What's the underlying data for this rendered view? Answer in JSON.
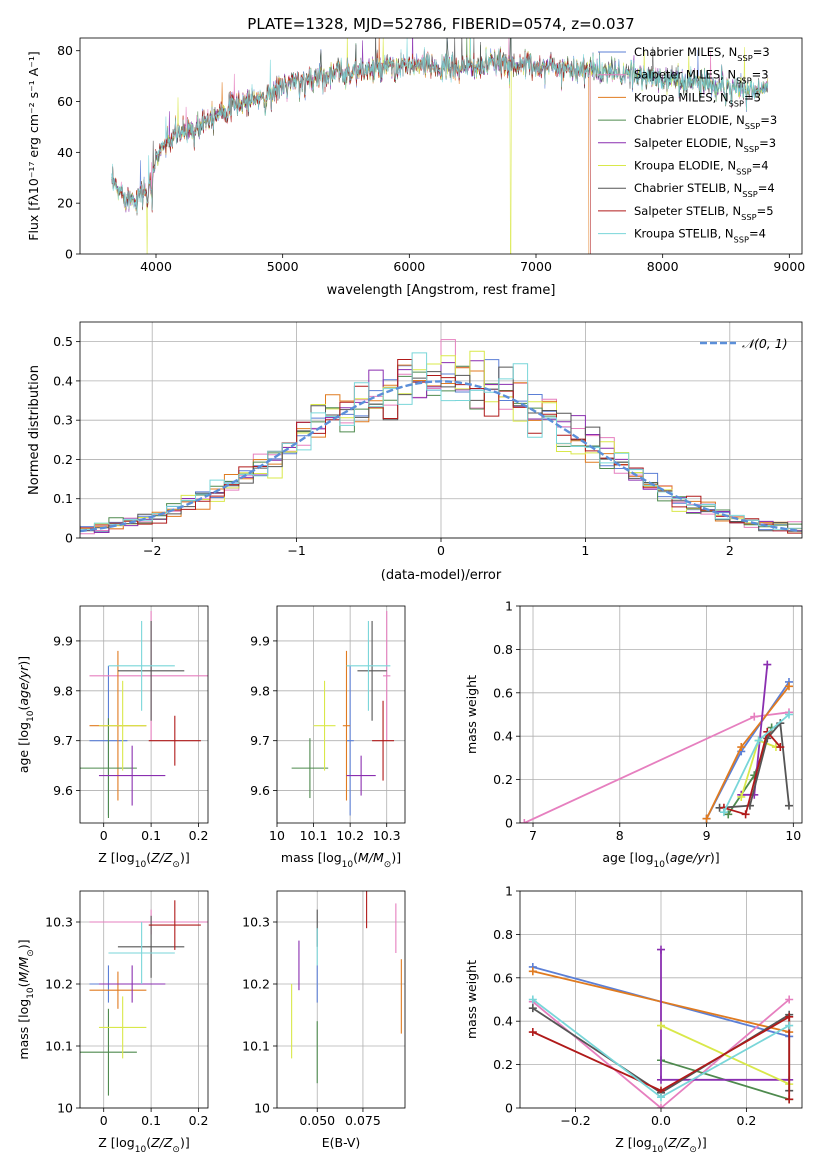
{
  "colors": {
    "chabrier_miles": "#5b7fd6",
    "salpeter_miles": "#e67fbf",
    "kroupa_miles": "#e07b20",
    "chabrier_elodie": "#4e8a4e",
    "salpeter_elodie": "#8a2fb0",
    "kroupa_elodie": "#d9e84a",
    "chabrier_stelib": "#555555",
    "salpeter_stelib": "#b01a1a",
    "kroupa_stelib": "#79d6d9",
    "normal_curve": "#5b8fd9"
  },
  "chart_data": [
    {
      "id": "spectrum",
      "type": "line",
      "title": "PLATE=1328, MJD=52786, FIBERID=0574, z=0.037",
      "xlabel": "wavelength [Angstrom, rest frame]",
      "ylabel": "Flux [fλ10⁻¹⁷ erg cm⁻² s⁻¹ A⁻¹]",
      "xlim": [
        3400,
        9100
      ],
      "ylim": [
        0,
        85
      ],
      "xticks": [
        4000,
        5000,
        6000,
        7000,
        8000,
        9000
      ],
      "yticks": [
        0,
        20,
        40,
        60,
        80
      ],
      "legend_position": "right",
      "legend": [
        {
          "text": "Chabrier MILES, N",
          "sub": "SSP",
          "tail": "=3",
          "color_key": "chabrier_miles"
        },
        {
          "text": "Salpeter MILES, N",
          "sub": "SSP",
          "tail": "=3",
          "color_key": "salpeter_miles"
        },
        {
          "text": "Kroupa MILES, N",
          "sub": "SSP",
          "tail": "=3",
          "color_key": "kroupa_miles"
        },
        {
          "text": "Chabrier ELODIE, N",
          "sub": "SSP",
          "tail": "=3",
          "color_key": "chabrier_elodie"
        },
        {
          "text": "Salpeter ELODIE, N",
          "sub": "SSP",
          "tail": "=3",
          "color_key": "salpeter_elodie"
        },
        {
          "text": "Kroupa ELODIE, N",
          "sub": "SSP",
          "tail": "=4",
          "color_key": "kroupa_elodie"
        },
        {
          "text": "Chabrier STELIB, N",
          "sub": "SSP",
          "tail": "=4",
          "color_key": "chabrier_stelib"
        },
        {
          "text": "Salpeter STELIB, N",
          "sub": "SSP",
          "tail": "=5",
          "color_key": "salpeter_stelib"
        },
        {
          "text": "Kroupa STELIB, N",
          "sub": "SSP",
          "tail": "=4",
          "color_key": "kroupa_stelib"
        }
      ],
      "continuum": [
        [
          3650,
          28
        ],
        [
          3700,
          25
        ],
        [
          3800,
          22
        ],
        [
          3900,
          24
        ],
        [
          3970,
          30
        ],
        [
          4000,
          38
        ],
        [
          4050,
          42
        ],
        [
          4100,
          45
        ],
        [
          4200,
          48
        ],
        [
          4300,
          50
        ],
        [
          4350,
          52
        ],
        [
          4500,
          56
        ],
        [
          4700,
          60
        ],
        [
          4860,
          62
        ],
        [
          5000,
          66
        ],
        [
          5200,
          69
        ],
        [
          5400,
          71
        ],
        [
          5600,
          72
        ],
        [
          5800,
          73
        ],
        [
          6000,
          74
        ],
        [
          6200,
          74
        ],
        [
          6400,
          73
        ],
        [
          6563,
          74
        ],
        [
          6700,
          75
        ],
        [
          7000,
          74
        ],
        [
          7300,
          73
        ],
        [
          7500,
          72
        ],
        [
          7800,
          70
        ],
        [
          8000,
          69
        ],
        [
          8200,
          68
        ],
        [
          8400,
          67
        ],
        [
          8600,
          66
        ],
        [
          8800,
          65
        ]
      ],
      "absorptions": [
        [
          3934,
          10
        ],
        [
          3968,
          12
        ],
        [
          4101,
          4
        ],
        [
          4300,
          6
        ],
        [
          4340,
          5
        ],
        [
          4861,
          6
        ],
        [
          5175,
          8
        ],
        [
          5890,
          5
        ],
        [
          6563,
          4
        ],
        [
          8498,
          6
        ],
        [
          8542,
          8
        ],
        [
          8662,
          7
        ]
      ],
      "emissions": [
        [
          5300,
          8
        ],
        [
          5577,
          10
        ],
        [
          6300,
          9
        ],
        [
          6563,
          12
        ],
        [
          6800,
          14
        ],
        [
          7600,
          6
        ]
      ],
      "drops": [
        {
          "x": 3930,
          "series": "kroupa_elodie"
        },
        {
          "x": 6800,
          "series": "kroupa_elodie"
        },
        {
          "x": 7420,
          "series": "kroupa_miles"
        },
        {
          "x": 7430,
          "series": "salpeter_stelib"
        }
      ]
    },
    {
      "id": "residuals",
      "type": "step",
      "xlabel": "(data-model)/error",
      "ylabel": "Normed distribution",
      "xlim": [
        -2.5,
        2.5
      ],
      "ylim": [
        0,
        0.55
      ],
      "xticks": [
        -2,
        -1,
        0,
        1,
        2
      ],
      "yticks": [
        0.0,
        0.1,
        0.2,
        0.3,
        0.4,
        0.5
      ],
      "legend": "𝒩(0, 1)",
      "bin_width": 0.1,
      "series_keys": [
        "chabrier_miles",
        "salpeter_miles",
        "kroupa_miles",
        "chabrier_elodie",
        "salpeter_elodie",
        "kroupa_elodie",
        "chabrier_stelib",
        "salpeter_stelib",
        "kroupa_stelib"
      ]
    },
    {
      "id": "age_vs_Z",
      "type": "errorbar",
      "xlabel": "Z [log₁₀(Z/Z⊙)]",
      "ylabel": "age  [log₁₀(age/yr)]",
      "xlim": [
        -0.05,
        0.22
      ],
      "ylim": [
        9.535,
        9.97
      ],
      "xticks": [
        0.0,
        0.1,
        0.2
      ],
      "yticks": [
        9.6,
        9.7,
        9.8,
        9.9
      ],
      "points": [
        {
          "series": "chabrier_miles",
          "x": 0.01,
          "xerr": 0.04,
          "y": 9.7,
          "yerr": 0.15
        },
        {
          "series": "salpeter_miles",
          "x": 0.1,
          "xerr": 0.13,
          "y": 9.83,
          "yerr": 0.13
        },
        {
          "series": "kroupa_miles",
          "x": 0.03,
          "xerr": 0.06,
          "y": 9.73,
          "yerr": 0.15
        },
        {
          "series": "chabrier_elodie",
          "x": 0.01,
          "xerr": 0.06,
          "y": 9.645,
          "yerr": 0.1
        },
        {
          "series": "salpeter_elodie",
          "x": 0.06,
          "xerr": 0.07,
          "y": 9.63,
          "yerr": 0.06
        },
        {
          "series": "kroupa_elodie",
          "x": 0.04,
          "xerr": 0.05,
          "y": 9.73,
          "yerr": 0.09
        },
        {
          "series": "chabrier_stelib",
          "x": 0.1,
          "xerr": 0.07,
          "y": 9.84,
          "yerr": 0.1
        },
        {
          "series": "salpeter_stelib",
          "x": 0.15,
          "xerr": 0.055,
          "y": 9.7,
          "yerr": 0.05
        },
        {
          "series": "kroupa_stelib",
          "x": 0.08,
          "xerr": 0.07,
          "y": 9.85,
          "yerr": 0.09
        }
      ]
    },
    {
      "id": "age_vs_mass",
      "type": "errorbar",
      "xlabel": "mass [log₁₀(M/M⊙)]",
      "xlim": [
        10.0,
        10.35
      ],
      "ylim": [
        9.535,
        9.97
      ],
      "xticks": [
        10.0,
        10.1,
        10.2,
        10.3
      ],
      "yticks": [
        9.6,
        9.7,
        9.8,
        9.9
      ],
      "points": [
        {
          "series": "chabrier_miles",
          "x": 10.2,
          "xerr": 0.01,
          "y": 9.7,
          "yerr": 0.15
        },
        {
          "series": "salpeter_miles",
          "x": 10.3,
          "xerr": 0.01,
          "y": 9.83,
          "yerr": 0.13
        },
        {
          "series": "kroupa_miles",
          "x": 10.19,
          "xerr": 0.01,
          "y": 9.73,
          "yerr": 0.15
        },
        {
          "series": "chabrier_elodie",
          "x": 10.09,
          "xerr": 0.05,
          "y": 9.645,
          "yerr": 0.06
        },
        {
          "series": "salpeter_elodie",
          "x": 10.23,
          "xerr": 0.04,
          "y": 9.63,
          "yerr": 0.04
        },
        {
          "series": "kroupa_elodie",
          "x": 10.13,
          "xerr": 0.03,
          "y": 9.73,
          "yerr": 0.09
        },
        {
          "series": "chabrier_stelib",
          "x": 10.26,
          "xerr": 0.04,
          "y": 9.84,
          "yerr": 0.1
        },
        {
          "series": "salpeter_stelib",
          "x": 10.29,
          "xerr": 0.03,
          "y": 9.7,
          "yerr": 0.08
        },
        {
          "series": "kroupa_stelib",
          "x": 10.25,
          "xerr": 0.06,
          "y": 9.85,
          "yerr": 0.09
        }
      ]
    },
    {
      "id": "weight_vs_age",
      "type": "line",
      "xlabel": "age  [log₁₀(age/yr)]",
      "ylabel": "mass weight",
      "xlim": [
        6.85,
        10.1
      ],
      "ylim": [
        0,
        1
      ],
      "xticks": [
        7,
        8,
        9,
        10
      ],
      "yticks": [
        0.0,
        0.2,
        0.4,
        0.6,
        0.8,
        1.0
      ],
      "series": [
        {
          "series": "chabrier_miles",
          "points": [
            [
              9.0,
              0.02
            ],
            [
              9.4,
              0.33
            ],
            [
              9.95,
              0.65
            ]
          ]
        },
        {
          "series": "salpeter_miles",
          "points": [
            [
              6.9,
              0.0
            ],
            [
              9.55,
              0.49
            ],
            [
              9.95,
              0.51
            ]
          ]
        },
        {
          "series": "kroupa_miles",
          "points": [
            [
              9.0,
              0.02
            ],
            [
              9.4,
              0.35
            ],
            [
              9.95,
              0.63
            ]
          ]
        },
        {
          "series": "chabrier_elodie",
          "points": [
            [
              9.25,
              0.04
            ],
            [
              9.55,
              0.22
            ],
            [
              9.75,
              0.44
            ]
          ]
        },
        {
          "series": "salpeter_elodie",
          "points": [
            [
              9.4,
              0.13
            ],
            [
              9.55,
              0.13
            ],
            [
              9.7,
              0.73
            ]
          ]
        },
        {
          "series": "kroupa_elodie",
          "points": [
            [
              9.4,
              0.12
            ],
            [
              9.6,
              0.38
            ],
            [
              9.8,
              0.35
            ]
          ]
        },
        {
          "series": "chabrier_stelib",
          "points": [
            [
              9.15,
              0.07
            ],
            [
              9.5,
              0.08
            ],
            [
              9.7,
              0.39
            ],
            [
              9.85,
              0.46
            ],
            [
              9.95,
              0.08
            ]
          ]
        },
        {
          "series": "salpeter_stelib",
          "points": [
            [
              9.2,
              0.07
            ],
            [
              9.45,
              0.04
            ],
            [
              9.7,
              0.42
            ],
            [
              9.85,
              0.35
            ]
          ]
        },
        {
          "series": "kroupa_stelib",
          "points": [
            [
              9.2,
              0.05
            ],
            [
              9.6,
              0.38
            ],
            [
              9.95,
              0.5
            ]
          ]
        }
      ]
    },
    {
      "id": "mass_vs_Z",
      "type": "errorbar",
      "xlabel": "Z [log₁₀(Z/Z⊙)]",
      "ylabel": "mass [log₁₀(M/M⊙)]",
      "xlim": [
        -0.05,
        0.22
      ],
      "ylim": [
        10.0,
        10.35
      ],
      "xticks": [
        0.0,
        0.1,
        0.2
      ],
      "yticks": [
        10.0,
        10.1,
        10.2,
        10.3
      ],
      "points": [
        {
          "series": "chabrier_miles",
          "x": 0.01,
          "xerr": 0.04,
          "y": 10.2,
          "yerr": 0.03
        },
        {
          "series": "salpeter_miles",
          "x": 0.1,
          "xerr": 0.13,
          "y": 10.3,
          "yerr": 0.02
        },
        {
          "series": "kroupa_miles",
          "x": 0.03,
          "xerr": 0.06,
          "y": 10.19,
          "yerr": 0.03
        },
        {
          "series": "chabrier_elodie",
          "x": 0.01,
          "xerr": 0.06,
          "y": 10.09,
          "yerr": 0.07
        },
        {
          "series": "salpeter_elodie",
          "x": 0.06,
          "xerr": 0.07,
          "y": 10.2,
          "yerr": 0.03
        },
        {
          "series": "kroupa_elodie",
          "x": 0.04,
          "xerr": 0.05,
          "y": 10.13,
          "yerr": 0.05
        },
        {
          "series": "chabrier_stelib",
          "x": 0.1,
          "xerr": 0.07,
          "y": 10.26,
          "yerr": 0.05
        },
        {
          "series": "salpeter_stelib",
          "x": 0.15,
          "xerr": 0.055,
          "y": 10.295,
          "yerr": 0.04
        },
        {
          "series": "kroupa_stelib",
          "x": 0.08,
          "xerr": 0.07,
          "y": 10.25,
          "yerr": 0.05
        }
      ]
    },
    {
      "id": "mass_vs_ebv",
      "type": "errorbar",
      "xlabel": "E(B-V)",
      "xlim": [
        0.028,
        0.098
      ],
      "ylim": [
        10.0,
        10.35
      ],
      "xticks": [
        0.05,
        0.075
      ],
      "xtick_labels": [
        "0.050",
        "0.075"
      ],
      "yticks": [
        10.0,
        10.1,
        10.2,
        10.3
      ],
      "points": [
        {
          "series": "chabrier_miles",
          "x": 0.05,
          "xerr": 0,
          "y": 10.2,
          "yerr": 0.03
        },
        {
          "series": "salpeter_miles",
          "x": 0.093,
          "xerr": 0,
          "y": 10.29,
          "yerr": 0.04
        },
        {
          "series": "kroupa_miles",
          "x": 0.096,
          "xerr": 0,
          "y": 10.18,
          "yerr": 0.06
        },
        {
          "series": "chabrier_elodie",
          "x": 0.05,
          "xerr": 0,
          "y": 10.09,
          "yerr": 0.05
        },
        {
          "series": "salpeter_elodie",
          "x": 0.04,
          "xerr": 0,
          "y": 10.23,
          "yerr": 0.04
        },
        {
          "series": "kroupa_elodie",
          "x": 0.036,
          "xerr": 0,
          "y": 10.14,
          "yerr": 0.06
        },
        {
          "series": "chabrier_stelib",
          "x": 0.05,
          "xerr": 0,
          "y": 10.29,
          "yerr": 0.03
        },
        {
          "series": "salpeter_stelib",
          "x": 0.077,
          "xerr": 0,
          "y": 10.32,
          "yerr": 0.03
        },
        {
          "series": "kroupa_stelib",
          "x": 0.05,
          "xerr": 0,
          "y": 10.26,
          "yerr": 0.03
        }
      ]
    },
    {
      "id": "weight_vs_Z",
      "type": "line",
      "xlabel": "Z [log₁₀(Z/Z⊙)]",
      "ylabel": "mass weight",
      "xlim": [
        -0.33,
        0.33
      ],
      "ylim": [
        0,
        1
      ],
      "xticks": [
        -0.2,
        0.0,
        0.2
      ],
      "xtick_labels": [
        "−0.2",
        "0.0",
        "0.2"
      ],
      "yticks": [
        0.0,
        0.2,
        0.4,
        0.6,
        0.8,
        1.0
      ],
      "series": [
        {
          "series": "chabrier_miles",
          "points": [
            [
              -0.3,
              0.65
            ],
            [
              0.3,
              0.33
            ]
          ]
        },
        {
          "series": "salpeter_miles",
          "points": [
            [
              -0.3,
              0.49
            ],
            [
              0.0,
              0.0
            ],
            [
              0.3,
              0.5
            ]
          ]
        },
        {
          "series": "kroupa_miles",
          "points": [
            [
              -0.3,
              0.63
            ],
            [
              0.3,
              0.35
            ]
          ]
        },
        {
          "series": "chabrier_elodie",
          "points": [
            [
              0.0,
              0.22
            ],
            [
              0.3,
              0.04
            ]
          ]
        },
        {
          "series": "salpeter_elodie",
          "points": [
            [
              0.0,
              0.73
            ],
            [
              0.0,
              0.13
            ],
            [
              0.3,
              0.13
            ]
          ]
        },
        {
          "series": "kroupa_elodie",
          "points": [
            [
              0.0,
              0.38
            ],
            [
              0.3,
              0.11
            ]
          ]
        },
        {
          "series": "chabrier_stelib",
          "points": [
            [
              -0.3,
              0.46
            ],
            [
              0.0,
              0.07
            ],
            [
              0.3,
              0.43
            ],
            [
              0.3,
              0.08
            ]
          ]
        },
        {
          "series": "salpeter_stelib",
          "points": [
            [
              -0.3,
              0.35
            ],
            [
              0.0,
              0.08
            ],
            [
              0.3,
              0.42
            ],
            [
              0.3,
              0.04
            ]
          ]
        },
        {
          "series": "kroupa_stelib",
          "points": [
            [
              -0.3,
              0.5
            ],
            [
              0.0,
              0.05
            ],
            [
              0.3,
              0.38
            ]
          ]
        }
      ]
    }
  ]
}
